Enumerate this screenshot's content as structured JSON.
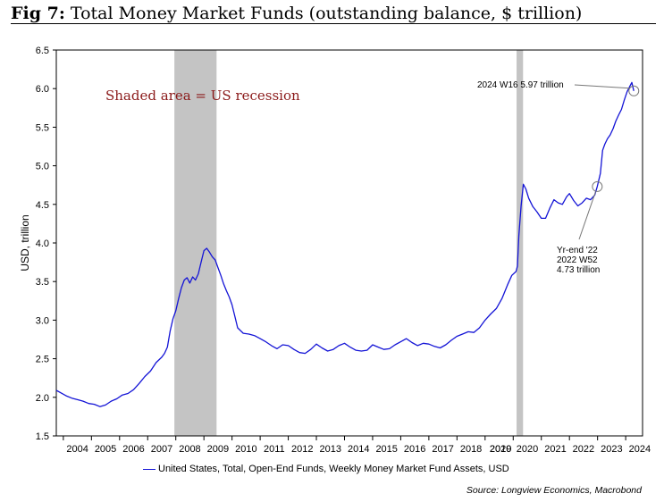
{
  "figure": {
    "number": "Fig 7:",
    "title": "Total Money Market Funds (outstanding balance, $ trillion)"
  },
  "chart_data": {
    "type": "line",
    "ylabel": "USD, trillion",
    "ylim": [
      1.5,
      6.5
    ],
    "yticks": [
      1.5,
      2.0,
      2.5,
      3.0,
      3.5,
      4.0,
      4.5,
      5.0,
      5.5,
      6.0,
      6.5
    ],
    "ytick_labels": [
      "1.5",
      "2.0",
      "2.5",
      "3.0",
      "3.5",
      "4.0",
      "4.5",
      "5.0",
      "5.5",
      "6.0",
      "6.5"
    ],
    "xlim": [
      2003.75,
      2024.6
    ],
    "xtick_labels": [
      "2004",
      "2005",
      "2006",
      "2007",
      "2008",
      "2009",
      "2010",
      "2011",
      "2012",
      "2013",
      "2014",
      "2015",
      "2016",
      "2017",
      "2018",
      "2019",
      "2020",
      "2020",
      "2021",
      "2022",
      "2023",
      "2024"
    ],
    "grid": false,
    "legend_position": "bottom",
    "recessions": [
      {
        "start": 2007.95,
        "end": 2009.45
      },
      {
        "start": 2020.12,
        "end": 2020.35
      }
    ],
    "annotation_shaded": "Shaded area = US recession",
    "series": [
      {
        "name": "United States, Total, Open-End Funds, Weekly Money Market Fund Assets, USD",
        "color": "#1414d6",
        "points": [
          [
            2003.75,
            2.09
          ],
          [
            2003.9,
            2.06
          ],
          [
            2004.1,
            2.02
          ],
          [
            2004.3,
            1.99
          ],
          [
            2004.5,
            1.97
          ],
          [
            2004.7,
            1.95
          ],
          [
            2004.9,
            1.92
          ],
          [
            2005.1,
            1.91
          ],
          [
            2005.3,
            1.88
          ],
          [
            2005.5,
            1.9
          ],
          [
            2005.7,
            1.95
          ],
          [
            2005.9,
            1.98
          ],
          [
            2006.1,
            2.03
          ],
          [
            2006.3,
            2.05
          ],
          [
            2006.5,
            2.1
          ],
          [
            2006.7,
            2.18
          ],
          [
            2006.9,
            2.27
          ],
          [
            2007.1,
            2.34
          ],
          [
            2007.3,
            2.45
          ],
          [
            2007.5,
            2.52
          ],
          [
            2007.6,
            2.57
          ],
          [
            2007.7,
            2.65
          ],
          [
            2007.8,
            2.86
          ],
          [
            2007.9,
            3.02
          ],
          [
            2008.0,
            3.12
          ],
          [
            2008.1,
            3.28
          ],
          [
            2008.2,
            3.42
          ],
          [
            2008.3,
            3.52
          ],
          [
            2008.4,
            3.55
          ],
          [
            2008.5,
            3.48
          ],
          [
            2008.6,
            3.56
          ],
          [
            2008.7,
            3.52
          ],
          [
            2008.8,
            3.6
          ],
          [
            2008.9,
            3.75
          ],
          [
            2009.0,
            3.9
          ],
          [
            2009.1,
            3.93
          ],
          [
            2009.2,
            3.88
          ],
          [
            2009.3,
            3.82
          ],
          [
            2009.4,
            3.78
          ],
          [
            2009.5,
            3.68
          ],
          [
            2009.6,
            3.58
          ],
          [
            2009.7,
            3.47
          ],
          [
            2009.8,
            3.38
          ],
          [
            2009.9,
            3.3
          ],
          [
            2010.0,
            3.2
          ],
          [
            2010.1,
            3.05
          ],
          [
            2010.2,
            2.9
          ],
          [
            2010.4,
            2.83
          ],
          [
            2010.6,
            2.82
          ],
          [
            2010.8,
            2.8
          ],
          [
            2011.0,
            2.76
          ],
          [
            2011.2,
            2.72
          ],
          [
            2011.4,
            2.67
          ],
          [
            2011.6,
            2.63
          ],
          [
            2011.8,
            2.68
          ],
          [
            2012.0,
            2.67
          ],
          [
            2012.2,
            2.62
          ],
          [
            2012.4,
            2.58
          ],
          [
            2012.6,
            2.57
          ],
          [
            2012.8,
            2.62
          ],
          [
            2013.0,
            2.69
          ],
          [
            2013.2,
            2.64
          ],
          [
            2013.4,
            2.6
          ],
          [
            2013.6,
            2.62
          ],
          [
            2013.8,
            2.67
          ],
          [
            2014.0,
            2.7
          ],
          [
            2014.2,
            2.65
          ],
          [
            2014.4,
            2.61
          ],
          [
            2014.6,
            2.6
          ],
          [
            2014.8,
            2.61
          ],
          [
            2015.0,
            2.68
          ],
          [
            2015.2,
            2.65
          ],
          [
            2015.4,
            2.62
          ],
          [
            2015.6,
            2.63
          ],
          [
            2015.8,
            2.68
          ],
          [
            2016.0,
            2.72
          ],
          [
            2016.2,
            2.76
          ],
          [
            2016.4,
            2.71
          ],
          [
            2016.6,
            2.67
          ],
          [
            2016.8,
            2.7
          ],
          [
            2017.0,
            2.69
          ],
          [
            2017.2,
            2.66
          ],
          [
            2017.4,
            2.64
          ],
          [
            2017.6,
            2.68
          ],
          [
            2017.8,
            2.74
          ],
          [
            2018.0,
            2.79
          ],
          [
            2018.2,
            2.82
          ],
          [
            2018.4,
            2.85
          ],
          [
            2018.6,
            2.84
          ],
          [
            2018.8,
            2.9
          ],
          [
            2019.0,
            3.0
          ],
          [
            2019.2,
            3.08
          ],
          [
            2019.4,
            3.15
          ],
          [
            2019.6,
            3.28
          ],
          [
            2019.8,
            3.46
          ],
          [
            2019.95,
            3.58
          ],
          [
            2020.1,
            3.63
          ],
          [
            2020.15,
            3.7
          ],
          [
            2020.2,
            4.1
          ],
          [
            2020.28,
            4.48
          ],
          [
            2020.36,
            4.76
          ],
          [
            2020.45,
            4.7
          ],
          [
            2020.55,
            4.58
          ],
          [
            2020.7,
            4.47
          ],
          [
            2020.85,
            4.4
          ],
          [
            2021.0,
            4.32
          ],
          [
            2021.15,
            4.32
          ],
          [
            2021.3,
            4.45
          ],
          [
            2021.45,
            4.56
          ],
          [
            2021.6,
            4.52
          ],
          [
            2021.75,
            4.5
          ],
          [
            2021.9,
            4.6
          ],
          [
            2022.0,
            4.64
          ],
          [
            2022.15,
            4.55
          ],
          [
            2022.3,
            4.48
          ],
          [
            2022.45,
            4.52
          ],
          [
            2022.6,
            4.58
          ],
          [
            2022.75,
            4.56
          ],
          [
            2022.9,
            4.62
          ],
          [
            2022.99,
            4.73
          ],
          [
            2023.1,
            4.9
          ],
          [
            2023.18,
            5.2
          ],
          [
            2023.26,
            5.28
          ],
          [
            2023.35,
            5.35
          ],
          [
            2023.45,
            5.4
          ],
          [
            2023.55,
            5.48
          ],
          [
            2023.65,
            5.58
          ],
          [
            2023.75,
            5.66
          ],
          [
            2023.85,
            5.73
          ],
          [
            2023.95,
            5.85
          ],
          [
            2024.05,
            5.96
          ],
          [
            2024.15,
            6.03
          ],
          [
            2024.22,
            6.08
          ],
          [
            2024.29,
            5.97
          ]
        ]
      }
    ],
    "annotations": [
      {
        "text": "2024 W16 5.97 trillion",
        "x": 2024.29,
        "y": 5.97
      },
      {
        "lines": [
          "Yr-end '22",
          "2022 W52",
          "4.73 trillion"
        ],
        "x": 2022.99,
        "y": 4.73
      }
    ]
  },
  "source": "Source: Longview Economics, Macrobond"
}
